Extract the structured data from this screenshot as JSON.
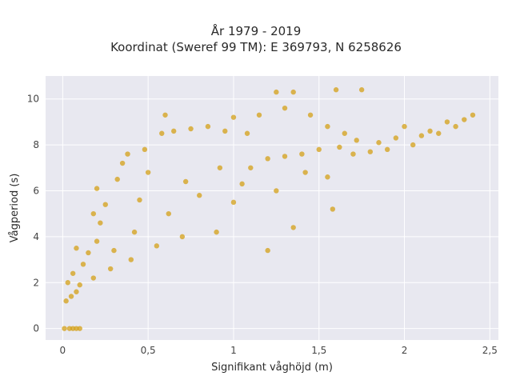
{
  "chart_data": {
    "type": "scatter",
    "title": "År 1979 - 2019",
    "subtitle": "Koordinat (Sweref 99 TM): E 369793, N 6258626",
    "xlabel": "Signifikant våghöjd (m)",
    "ylabel": "Vågperiod (s)",
    "xlim": [
      -0.1,
      2.55
    ],
    "ylim": [
      -0.5,
      11
    ],
    "x_ticks": [
      0,
      0.5,
      1,
      1.5,
      2,
      2.5
    ],
    "x_tick_labels": [
      "0",
      "0,5",
      "1",
      "1,5",
      "2",
      "2,5"
    ],
    "y_ticks": [
      0,
      2,
      4,
      6,
      8,
      10
    ],
    "y_tick_labels": [
      "0",
      "2",
      "4",
      "6",
      "8",
      "10"
    ],
    "grid": true,
    "marker_color": "#D4A017",
    "background_color": "#E8E8F0",
    "series": [
      {
        "values": [
          [
            0.01,
            0
          ],
          [
            0.04,
            0
          ],
          [
            0.06,
            0
          ],
          [
            0.08,
            0
          ],
          [
            0.1,
            0
          ],
          [
            0.02,
            1.2
          ],
          [
            0.05,
            1.4
          ],
          [
            0.08,
            1.6
          ],
          [
            0.03,
            2.0
          ],
          [
            0.06,
            2.4
          ],
          [
            0.1,
            1.9
          ],
          [
            0.12,
            2.8
          ],
          [
            0.15,
            3.3
          ],
          [
            0.08,
            3.5
          ],
          [
            0.18,
            2.2
          ],
          [
            0.2,
            3.8
          ],
          [
            0.22,
            4.6
          ],
          [
            0.25,
            5.4
          ],
          [
            0.2,
            6.1
          ],
          [
            0.18,
            5.0
          ],
          [
            0.28,
            2.6
          ],
          [
            0.3,
            3.4
          ],
          [
            0.32,
            6.5
          ],
          [
            0.35,
            7.2
          ],
          [
            0.38,
            7.6
          ],
          [
            0.4,
            3.0
          ],
          [
            0.42,
            4.2
          ],
          [
            0.45,
            5.6
          ],
          [
            0.48,
            7.8
          ],
          [
            0.5,
            6.8
          ],
          [
            0.55,
            3.6
          ],
          [
            0.58,
            8.5
          ],
          [
            0.6,
            9.3
          ],
          [
            0.62,
            5.0
          ],
          [
            0.65,
            8.6
          ],
          [
            0.7,
            4.0
          ],
          [
            0.72,
            6.4
          ],
          [
            0.75,
            8.7
          ],
          [
            0.8,
            5.8
          ],
          [
            0.85,
            8.8
          ],
          [
            0.9,
            4.2
          ],
          [
            0.92,
            7.0
          ],
          [
            0.95,
            8.6
          ],
          [
            1.0,
            5.5
          ],
          [
            1.0,
            9.2
          ],
          [
            1.05,
            6.3
          ],
          [
            1.08,
            8.5
          ],
          [
            1.1,
            7.0
          ],
          [
            1.15,
            9.3
          ],
          [
            1.2,
            3.4
          ],
          [
            1.2,
            7.4
          ],
          [
            1.25,
            10.3
          ],
          [
            1.25,
            6.0
          ],
          [
            1.3,
            7.5
          ],
          [
            1.3,
            9.6
          ],
          [
            1.35,
            10.3
          ],
          [
            1.35,
            4.4
          ],
          [
            1.4,
            7.6
          ],
          [
            1.42,
            6.8
          ],
          [
            1.45,
            9.3
          ],
          [
            1.5,
            7.8
          ],
          [
            1.55,
            6.6
          ],
          [
            1.55,
            8.8
          ],
          [
            1.58,
            5.2
          ],
          [
            1.6,
            10.4
          ],
          [
            1.62,
            7.9
          ],
          [
            1.65,
            8.5
          ],
          [
            1.7,
            7.6
          ],
          [
            1.72,
            8.2
          ],
          [
            1.75,
            10.4
          ],
          [
            1.8,
            7.7
          ],
          [
            1.85,
            8.1
          ],
          [
            1.9,
            7.8
          ],
          [
            1.95,
            8.3
          ],
          [
            2.0,
            8.8
          ],
          [
            2.05,
            8.0
          ],
          [
            2.1,
            8.4
          ],
          [
            2.15,
            8.6
          ],
          [
            2.2,
            8.5
          ],
          [
            2.25,
            9.0
          ],
          [
            2.3,
            8.8
          ],
          [
            2.35,
            9.1
          ],
          [
            2.4,
            9.3
          ]
        ]
      }
    ]
  }
}
